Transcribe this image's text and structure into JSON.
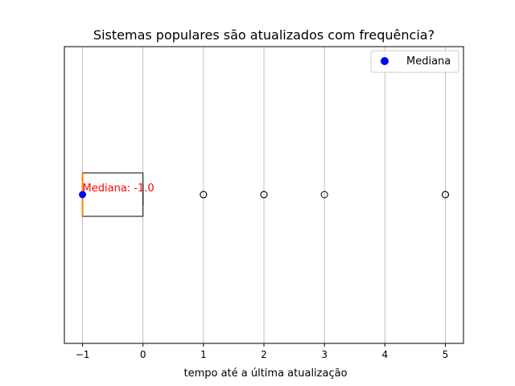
{
  "chart_data": {
    "type": "boxplot",
    "orientation": "horizontal",
    "title": "Sistemas populares são atualizados com frequência?",
    "xlabel": "tempo até a última atualização",
    "ylabel": "",
    "xlim": [
      -1.3,
      5.3
    ],
    "xticks": [
      -1,
      0,
      1,
      2,
      3,
      4,
      5
    ],
    "xtick_labels": [
      "−1",
      "0",
      "1",
      "2",
      "3",
      "4",
      "5"
    ],
    "grid": {
      "x": true,
      "y": false
    },
    "box": {
      "whisker_low": -1,
      "q1": -1,
      "median": -1,
      "q3": 0,
      "whisker_high": 0
    },
    "outliers": [
      1,
      1,
      2,
      2,
      3,
      5,
      5
    ],
    "median_marker": {
      "value": -1,
      "color": "#0000ff",
      "label": "Mediana"
    },
    "annotation": {
      "text": "Mediana: -1.0",
      "x": -1,
      "color": "#ff0000"
    },
    "legend": {
      "position": "top-right",
      "entries": [
        {
          "label": "Mediana",
          "color": "#0000ff",
          "marker": "circle"
        }
      ]
    },
    "colors": {
      "box": "#000000",
      "median_line": "#ff7f0e",
      "grid": "#b0b0b0",
      "outlier": "#000000"
    }
  }
}
